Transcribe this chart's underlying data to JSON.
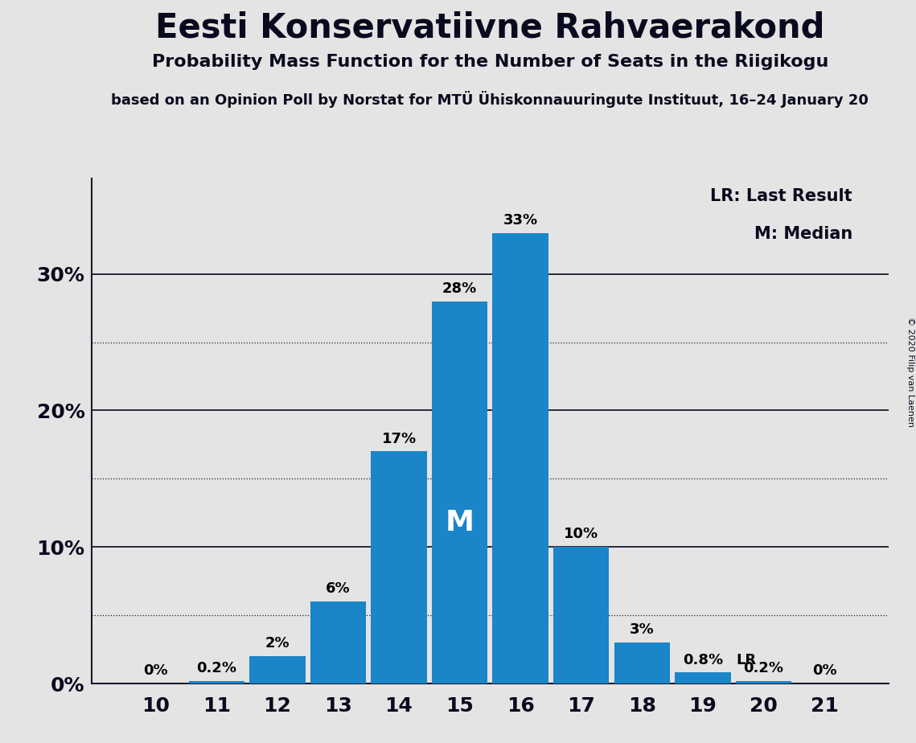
{
  "title": "Eesti Konservatiivne Rahvaerakond",
  "subtitle": "Probability Mass Function for the Number of Seats in the Riigikogu",
  "source_line": "based on an Opinion Poll by Norstat for MTÜ Ühiskonnauuringute Instituut, 16–24 January 20",
  "copyright": "© 2020 Filip van Laenen",
  "categories": [
    10,
    11,
    12,
    13,
    14,
    15,
    16,
    17,
    18,
    19,
    20,
    21
  ],
  "values": [
    0.0,
    0.2,
    2.0,
    6.0,
    17.0,
    28.0,
    33.0,
    10.0,
    3.0,
    0.8,
    0.2,
    0.0
  ],
  "labels": [
    "0%",
    "0.2%",
    "2%",
    "6%",
    "17%",
    "28%",
    "33%",
    "10%",
    "3%",
    "0.8%",
    "0.2%",
    "0%"
  ],
  "bar_color": "#1a85c8",
  "background_color": "#e4e4e4",
  "plot_bg_color": "#e4e4e4",
  "ylim": [
    0,
    37
  ],
  "median_seat": 15,
  "lr_seat": 19,
  "legend_lr": "LR: Last Result",
  "legend_m": "M: Median",
  "solid_grid": [
    10,
    20,
    30
  ],
  "dotted_grid": [
    5,
    15,
    25
  ],
  "yticks": [
    0,
    10,
    20,
    30
  ],
  "ytick_labels": [
    "0%",
    "10%",
    "20%",
    "30%"
  ]
}
